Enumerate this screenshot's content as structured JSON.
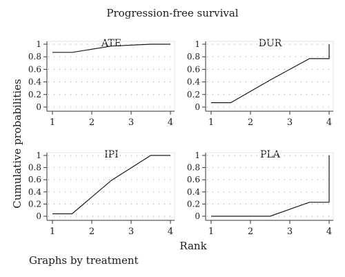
{
  "title": "Progression-free survival",
  "ylabel": "Cumulative probabilities",
  "xlabel": "Rank",
  "note": "Graphs by treatment",
  "chart_data": [
    {
      "type": "line",
      "title": "ATE",
      "x": [
        1,
        1.5,
        2.5,
        3.5,
        4
      ],
      "y": [
        0.87,
        0.87,
        0.97,
        1.0,
        1.0
      ],
      "xlim": [
        1,
        4
      ],
      "ylim": [
        0,
        1
      ],
      "xticks": [
        1,
        2,
        3,
        4
      ],
      "yticks": [
        "0",
        "0.2",
        "0.4",
        "0.6",
        "0.8",
        "1"
      ]
    },
    {
      "type": "line",
      "title": "DUR",
      "x": [
        1,
        1.5,
        2.5,
        3.5,
        4,
        4
      ],
      "y": [
        0.07,
        0.07,
        0.43,
        0.77,
        0.77,
        1.0
      ],
      "xlim": [
        1,
        4
      ],
      "ylim": [
        0,
        1
      ],
      "xticks": [
        1,
        2,
        3,
        4
      ],
      "yticks": [
        "0",
        "0.2",
        "0.4",
        "0.6",
        "0.8",
        "1"
      ]
    },
    {
      "type": "line",
      "title": "IPI",
      "x": [
        1,
        1.5,
        2.5,
        3.5,
        4
      ],
      "y": [
        0.04,
        0.04,
        0.59,
        1.0,
        1.0
      ],
      "xlim": [
        1,
        4
      ],
      "ylim": [
        0,
        1
      ],
      "xticks": [
        1,
        2,
        3,
        4
      ],
      "yticks": [
        "0",
        "0.2",
        "0.4",
        "0.6",
        "0.8",
        "1"
      ]
    },
    {
      "type": "line",
      "title": "PLA",
      "x": [
        1,
        1.5,
        2.5,
        3.5,
        4,
        4
      ],
      "y": [
        0,
        0,
        0,
        0.23,
        0.23,
        1.0
      ],
      "xlim": [
        1,
        4
      ],
      "ylim": [
        0,
        1
      ],
      "xticks": [
        1,
        2,
        3,
        4
      ],
      "yticks": [
        "0",
        "0.2",
        "0.4",
        "0.6",
        "0.8",
        "1"
      ]
    }
  ]
}
